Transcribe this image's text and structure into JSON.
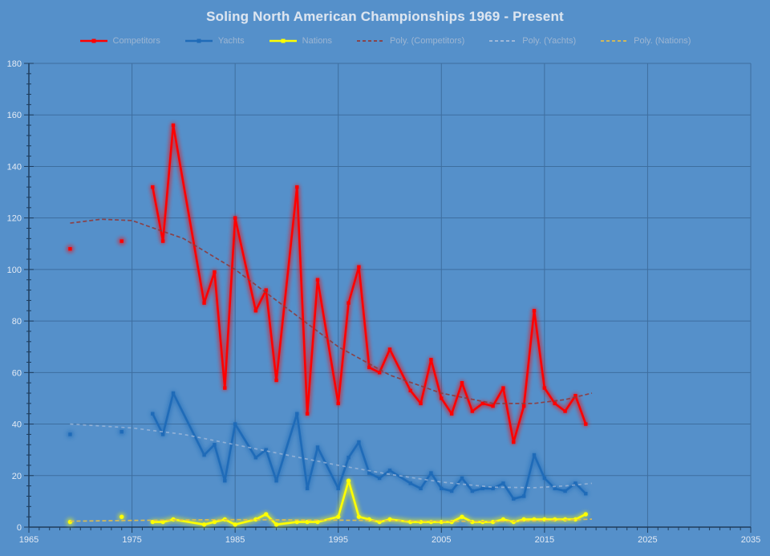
{
  "title": "Soling North American Championships 1969 - Present",
  "colors": {
    "background": "#5590CA",
    "gridline": "#3E6E9F",
    "axis": "#1E3C5C",
    "tick_label": "#E3EAF4",
    "title_text": "#DCE5F0",
    "legend_text": "#9DB6D3",
    "competitors": "#FF0000",
    "yachts": "#1F6BB8",
    "nations": "#FFFF00",
    "poly_competitors": "#8F3A3B",
    "poly_yachts": "#A9BDDB",
    "poly_nations": "#DFBE4E"
  },
  "legend": [
    {
      "id": "competitors",
      "label": "Competitors",
      "color": "#FF0000",
      "type": "line"
    },
    {
      "id": "yachts",
      "label": "Yachts",
      "color": "#1F6BB8",
      "type": "line"
    },
    {
      "id": "nations",
      "label": "Nations",
      "color": "#FFFF00",
      "type": "line"
    },
    {
      "id": "poly-competitors",
      "label": "Poly. (Competitors)",
      "color": "#8F3A3B",
      "type": "dash"
    },
    {
      "id": "poly-yachts",
      "label": "Poly. (Yachts)",
      "color": "#A9BDDB",
      "type": "dash"
    },
    {
      "id": "poly-nations",
      "label": "Poly. (Nations)",
      "color": "#DFBE4E",
      "type": "dash"
    }
  ],
  "chart_data": {
    "type": "line",
    "title": "Soling North American Championships 1969 - Present",
    "xlabel": "",
    "ylabel": "",
    "grid": true,
    "legend_position": "top",
    "x_axis": {
      "min": 1965,
      "max": 2035,
      "major_interval": 10,
      "minor_interval": 1,
      "tick_labels": [
        "1965",
        "1975",
        "1985",
        "1995",
        "2005",
        "2015",
        "2025",
        "2035"
      ]
    },
    "y_axis": {
      "min": 0,
      "max": 180,
      "major_interval": 20,
      "minor_interval": 4,
      "tick_labels": [
        "0",
        "20",
        "40",
        "60",
        "80",
        "100",
        "120",
        "140",
        "160",
        "180"
      ]
    },
    "series": [
      {
        "name": "Competitors",
        "color": "#FF0000",
        "marker": "square",
        "segments": [
          [
            [
              1969,
              108
            ]
          ],
          [
            [
              1974,
              111
            ]
          ],
          [
            [
              1977,
              132
            ],
            [
              1978,
              111
            ],
            [
              1979,
              156
            ],
            [
              1982,
              87
            ],
            [
              1983,
              99
            ],
            [
              1984,
              54
            ],
            [
              1985,
              120
            ],
            [
              1987,
              84
            ],
            [
              1988,
              92
            ],
            [
              1989,
              57
            ],
            [
              1991,
              132
            ],
            [
              1992,
              44
            ],
            [
              1993,
              96
            ],
            [
              1995,
              48
            ],
            [
              1996,
              87
            ],
            [
              1997,
              101
            ],
            [
              1998,
              62
            ],
            [
              1999,
              60
            ],
            [
              2000,
              69
            ],
            [
              2002,
              53
            ],
            [
              2003,
              48
            ],
            [
              2004,
              65
            ],
            [
              2005,
              50
            ],
            [
              2006,
              44
            ],
            [
              2007,
              56
            ],
            [
              2008,
              45
            ],
            [
              2009,
              48
            ],
            [
              2010,
              47
            ],
            [
              2011,
              54
            ],
            [
              2012,
              33
            ],
            [
              2013,
              47
            ],
            [
              2014,
              84
            ],
            [
              2015,
              54
            ],
            [
              2016,
              48
            ],
            [
              2017,
              45
            ],
            [
              2018,
              51
            ],
            [
              2019,
              40
            ]
          ]
        ]
      },
      {
        "name": "Yachts",
        "color": "#1F6BB8",
        "marker": "square",
        "segments": [
          [
            [
              1969,
              36
            ]
          ],
          [
            [
              1974,
              37
            ]
          ],
          [
            [
              1977,
              44
            ],
            [
              1978,
              36
            ],
            [
              1979,
              52
            ],
            [
              1982,
              28
            ],
            [
              1983,
              32
            ],
            [
              1984,
              18
            ],
            [
              1985,
              40
            ],
            [
              1987,
              27
            ],
            [
              1988,
              30
            ],
            [
              1989,
              18
            ],
            [
              1991,
              44
            ],
            [
              1992,
              15
            ],
            [
              1993,
              31
            ],
            [
              1995,
              15
            ],
            [
              1996,
              27
            ],
            [
              1997,
              33
            ],
            [
              1998,
              21
            ],
            [
              1999,
              19
            ],
            [
              2000,
              22
            ],
            [
              2002,
              17
            ],
            [
              2003,
              15
            ],
            [
              2004,
              21
            ],
            [
              2005,
              15
            ],
            [
              2006,
              14
            ],
            [
              2007,
              19
            ],
            [
              2008,
              14
            ],
            [
              2009,
              15
            ],
            [
              2010,
              15
            ],
            [
              2011,
              17
            ],
            [
              2012,
              11
            ],
            [
              2013,
              12
            ],
            [
              2014,
              28
            ],
            [
              2015,
              19
            ],
            [
              2016,
              15
            ],
            [
              2017,
              14
            ],
            [
              2018,
              17
            ],
            [
              2019,
              13
            ]
          ]
        ]
      },
      {
        "name": "Nations",
        "color": "#FFFF00",
        "marker": "circle",
        "segments": [
          [
            [
              1969,
              2
            ]
          ],
          [
            [
              1974,
              4
            ]
          ],
          [
            [
              1977,
              2
            ],
            [
              1978,
              2
            ],
            [
              1979,
              3
            ],
            [
              1982,
              1
            ],
            [
              1983,
              2
            ],
            [
              1984,
              3
            ],
            [
              1985,
              1
            ],
            [
              1987,
              3
            ],
            [
              1988,
              5
            ],
            [
              1989,
              1
            ],
            [
              1991,
              2
            ],
            [
              1992,
              2
            ],
            [
              1993,
              2
            ],
            [
              1995,
              4
            ],
            [
              1996,
              18
            ],
            [
              1997,
              4
            ],
            [
              1998,
              3
            ],
            [
              1999,
              2
            ],
            [
              2000,
              3
            ],
            [
              2002,
              2
            ],
            [
              2003,
              2
            ],
            [
              2004,
              2
            ],
            [
              2005,
              2
            ],
            [
              2006,
              2
            ],
            [
              2007,
              4
            ],
            [
              2008,
              2
            ],
            [
              2009,
              2
            ],
            [
              2010,
              2
            ],
            [
              2011,
              3
            ],
            [
              2012,
              2
            ],
            [
              2013,
              3
            ],
            [
              2014,
              3
            ],
            [
              2015,
              3
            ],
            [
              2016,
              3
            ],
            [
              2017,
              3
            ],
            [
              2018,
              3
            ],
            [
              2019,
              5
            ]
          ]
        ]
      }
    ],
    "trendlines": [
      {
        "name": "Poly. (Competitors)",
        "color": "#8F3A3B",
        "dash": "5 3",
        "opacity": 0.9,
        "points": [
          [
            1969,
            118
          ],
          [
            1972,
            119.5
          ],
          [
            1975,
            119
          ],
          [
            1980,
            112
          ],
          [
            1985,
            100
          ],
          [
            1990,
            85
          ],
          [
            1995,
            70
          ],
          [
            2000,
            59
          ],
          [
            2005,
            52
          ],
          [
            2010,
            48
          ],
          [
            2014,
            48
          ],
          [
            2017,
            49.5
          ],
          [
            2019.6,
            52
          ]
        ]
      },
      {
        "name": "Poly. (Yachts)",
        "color": "#A9BDDB",
        "dash": "4 4",
        "opacity": 0.7,
        "points": [
          [
            1969,
            40
          ],
          [
            1975,
            38.5
          ],
          [
            1980,
            36
          ],
          [
            1985,
            32
          ],
          [
            1990,
            28
          ],
          [
            1995,
            24
          ],
          [
            2000,
            20.5
          ],
          [
            2005,
            17.5
          ],
          [
            2010,
            15.5
          ],
          [
            2014,
            15.3
          ],
          [
            2017,
            16
          ],
          [
            2019.6,
            17
          ]
        ]
      },
      {
        "name": "Poly. (Nations)",
        "color": "#DFBE4E",
        "dash": "5 3",
        "opacity": 0.95,
        "points": [
          [
            1969,
            2.3
          ],
          [
            1975,
            2.6
          ],
          [
            1980,
            2.8
          ],
          [
            1985,
            2.9
          ],
          [
            1990,
            2.8
          ],
          [
            1995,
            2.7
          ],
          [
            2000,
            2.5
          ],
          [
            2005,
            2.3
          ],
          [
            2010,
            2.2
          ],
          [
            2014,
            2.4
          ],
          [
            2017,
            2.7
          ],
          [
            2019.6,
            3.1
          ]
        ]
      }
    ]
  }
}
